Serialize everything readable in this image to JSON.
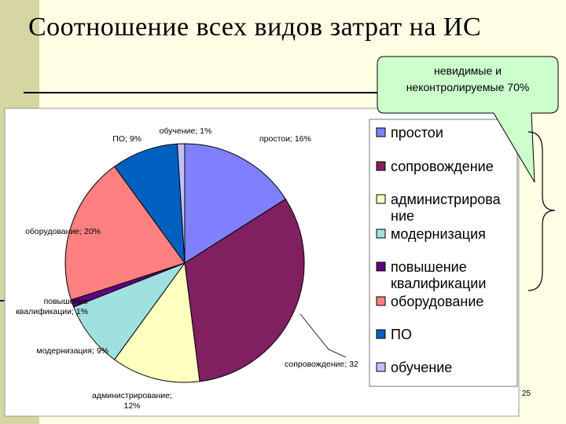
{
  "title": "Соотношение всех видов затрат на ИС",
  "callout": {
    "lines": [
      "невидимые и",
      "неконтролируемые 70%"
    ]
  },
  "slide_number": "25",
  "chart_data": {
    "type": "pie",
    "title": "",
    "slices": [
      {
        "name": "простои",
        "value": 16,
        "color": "#8080ff",
        "label_lines": [
          "простои; 16%"
        ]
      },
      {
        "name": "сопровождение",
        "value": 32,
        "color": "#802060",
        "label_lines": [
          "сопровождение; 32"
        ]
      },
      {
        "name": "администрирование",
        "value": 12,
        "color": "#ffffc0",
        "label_lines": [
          "администрирование;",
          "12%"
        ]
      },
      {
        "name": "модернизация",
        "value": 9,
        "color": "#a0e0e0",
        "label_lines": [
          "модернизация; 9%"
        ]
      },
      {
        "name": "повышение квалификации",
        "value": 1,
        "color": "#600080",
        "label_lines": [
          "повышение",
          "квалификации; 1%"
        ]
      },
      {
        "name": "оборудование",
        "value": 20,
        "color": "#ff8080",
        "label_lines": [
          "оборудование; 20%"
        ]
      },
      {
        "name": "ПО",
        "value": 9,
        "color": "#0060c0",
        "label_lines": [
          "ПО; 9%"
        ]
      },
      {
        "name": "обучение",
        "value": 1,
        "color": "#c0c0ff",
        "label_lines": [
          "обучение; 1%"
        ]
      }
    ],
    "legend": [
      {
        "lines": [
          "простои"
        ],
        "color": "#8080ff"
      },
      {
        "lines": [
          "сопровождение"
        ],
        "color": "#802060"
      },
      {
        "lines": [
          "администрирова",
          "ние"
        ],
        "color": "#ffffc0"
      },
      {
        "lines": [
          "модернизация"
        ],
        "color": "#a0e0e0"
      },
      {
        "lines": [
          "повышение",
          "квалификации"
        ],
        "color": "#600080"
      },
      {
        "lines": [
          "оборудование"
        ],
        "color": "#ff8080"
      },
      {
        "lines": [
          "ПО"
        ],
        "color": "#0060c0"
      },
      {
        "lines": [
          "обучение"
        ],
        "color": "#c0c0ff"
      }
    ],
    "legend_position": "right"
  }
}
